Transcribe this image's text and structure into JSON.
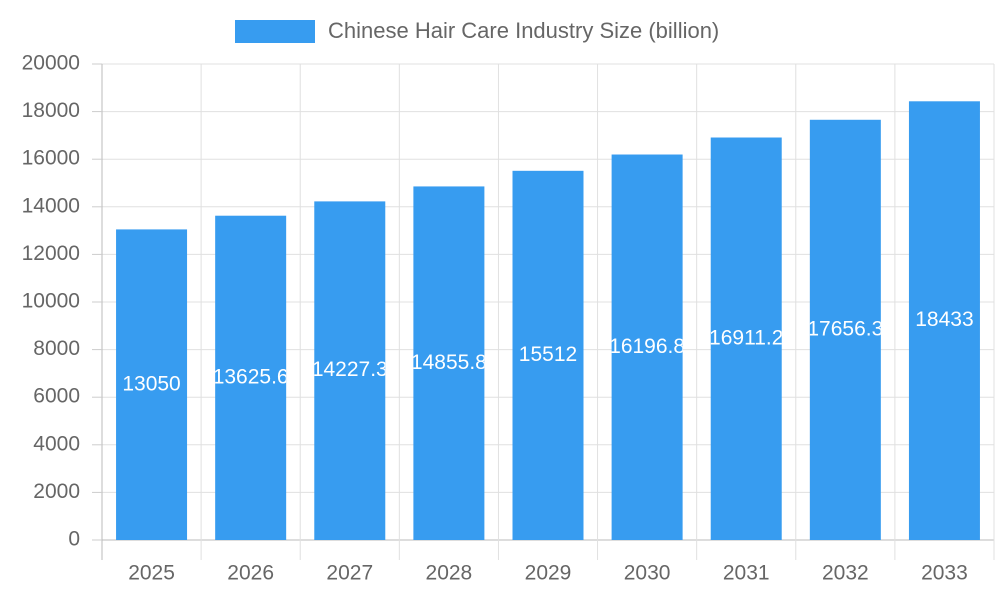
{
  "chart_data": {
    "type": "bar",
    "categories": [
      "2025",
      "2026",
      "2027",
      "2028",
      "2029",
      "2030",
      "2031",
      "2032",
      "2033"
    ],
    "series": [
      {
        "name": "Chinese Hair Care Industry Size (billion)",
        "color": "#379cf0",
        "values": [
          13050,
          13625.6,
          14227.3,
          14855.8,
          15512,
          16196.8,
          16911.2,
          17656.3,
          18433
        ]
      }
    ],
    "ylim": [
      0,
      20000
    ],
    "yticks": [
      0,
      2000,
      4000,
      6000,
      8000,
      10000,
      12000,
      14000,
      16000,
      18000,
      20000
    ],
    "grid": true,
    "legend": "top"
  }
}
